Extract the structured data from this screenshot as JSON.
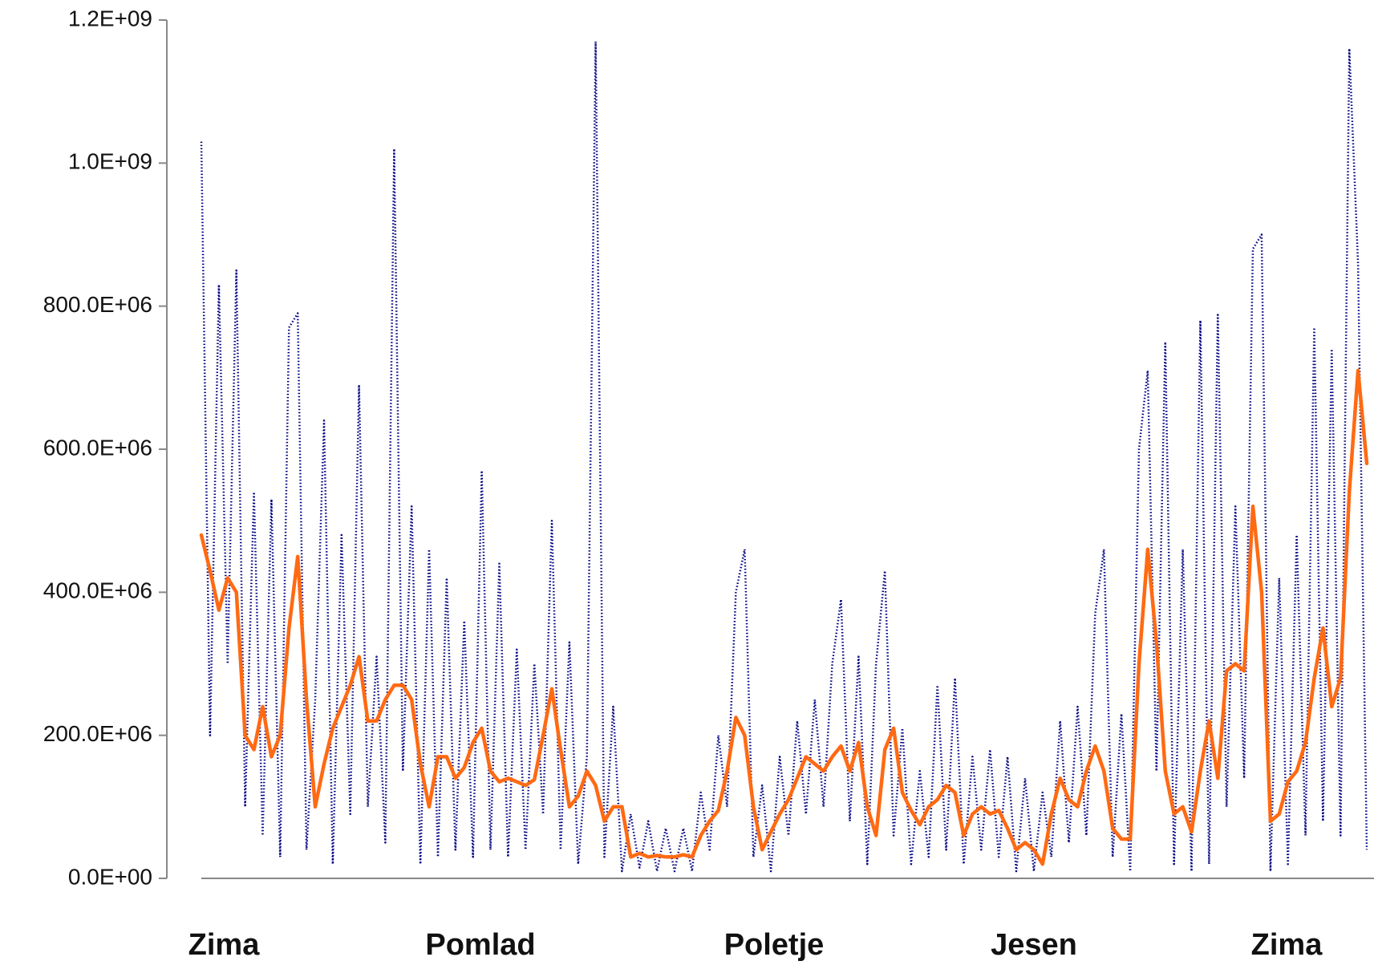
{
  "chart_data": {
    "type": "line",
    "x_axis_labels": [
      "Zima",
      "Pomlad",
      "Poletje",
      "Jesen",
      "Zima"
    ],
    "ylim": [
      0,
      1200000000.0
    ],
    "yticks": [
      {
        "value": 0,
        "label": "0.0E+00"
      },
      {
        "value": 200000000,
        "label": "200.0E+06"
      },
      {
        "value": 400000000,
        "label": "400.0E+06"
      },
      {
        "value": 600000000,
        "label": "600.0E+06"
      },
      {
        "value": 800000000,
        "label": "800.0E+06"
      },
      {
        "value": 1000000000,
        "label": "1.0E+09"
      },
      {
        "value": 1200000000,
        "label": "1.2E+09"
      }
    ],
    "grid": false,
    "series": [
      {
        "color": "#000080",
        "style": "dotted",
        "values": [
          1030000000.0,
          200000000.0,
          830000000.0,
          300000000.0,
          850000000.0,
          100000000.0,
          540000000.0,
          60000000.0,
          530000000.0,
          30000000.0,
          770000000.0,
          790000000.0,
          40000000.0,
          250000000.0,
          640000000.0,
          20000000.0,
          480000000.0,
          90000000.0,
          690000000.0,
          100000000.0,
          310000000.0,
          50000000.0,
          1020000000.0,
          150000000.0,
          520000000.0,
          20000000.0,
          460000000.0,
          30000000.0,
          420000000.0,
          40000000.0,
          360000000.0,
          30000000.0,
          570000000.0,
          40000000.0,
          440000000.0,
          30000000.0,
          320000000.0,
          40000000.0,
          300000000.0,
          90000000.0,
          500000000.0,
          40000000.0,
          330000000.0,
          20000000.0,
          170000000.0,
          1170000000.0,
          30000000.0,
          240000000.0,
          10000000.0,
          90000000.0,
          15000000.0,
          80000000.0,
          10000000.0,
          70000000.0,
          10000000.0,
          70000000.0,
          10000000.0,
          120000000.0,
          40000000.0,
          200000000.0,
          100000000.0,
          400000000.0,
          460000000.0,
          30000000.0,
          130000000.0,
          10000000.0,
          170000000.0,
          60000000.0,
          220000000.0,
          90000000.0,
          250000000.0,
          100000000.0,
          300000000.0,
          390000000.0,
          80000000.0,
          310000000.0,
          20000000.0,
          300000000.0,
          430000000.0,
          60000000.0,
          210000000.0,
          20000000.0,
          150000000.0,
          30000000.0,
          270000000.0,
          40000000.0,
          280000000.0,
          20000000.0,
          170000000.0,
          40000000.0,
          180000000.0,
          30000000.0,
          170000000.0,
          10000000.0,
          140000000.0,
          10000000.0,
          120000000.0,
          30000000.0,
          220000000.0,
          50000000.0,
          240000000.0,
          60000000.0,
          370000000.0,
          460000000.0,
          30000000.0,
          230000000.0,
          10000000.0,
          600000000.0,
          710000000.0,
          150000000.0,
          750000000.0,
          20000000.0,
          460000000.0,
          10000000.0,
          780000000.0,
          20000000.0,
          790000000.0,
          100000000.0,
          520000000.0,
          140000000.0,
          880000000.0,
          900000000.0,
          10000000.0,
          420000000.0,
          20000000.0,
          480000000.0,
          60000000.0,
          770000000.0,
          80000000.0,
          740000000.0,
          60000000.0,
          1160000000.0,
          860000000.0,
          40000000.0
        ]
      },
      {
        "color": "#ff6a13",
        "style": "solid",
        "values": [
          480000000.0,
          430000000.0,
          375000000.0,
          420000000.0,
          400000000.0,
          200000000.0,
          180000000.0,
          240000000.0,
          170000000.0,
          200000000.0,
          350000000.0,
          450000000.0,
          250000000.0,
          100000000.0,
          160000000.0,
          210000000.0,
          240000000.0,
          270000000.0,
          310000000.0,
          220000000.0,
          220000000.0,
          250000000.0,
          270000000.0,
          270000000.0,
          250000000.0,
          160000000.0,
          100000000.0,
          170000000.0,
          170000000.0,
          140000000.0,
          155000000.0,
          190000000.0,
          210000000.0,
          150000000.0,
          135000000.0,
          140000000.0,
          135000000.0,
          130000000.0,
          138000000.0,
          200000000.0,
          265000000.0,
          180000000.0,
          100000000.0,
          115000000.0,
          150000000.0,
          130000000.0,
          80000000.0,
          100000000.0,
          100000000.0,
          30000000.0,
          35000000.0,
          30000000.0,
          32000000.0,
          30000000.0,
          30000000.0,
          33000000.0,
          30000000.0,
          60000000.0,
          80000000.0,
          95000000.0,
          150000000.0,
          225000000.0,
          200000000.0,
          100000000.0,
          40000000.0,
          65000000.0,
          90000000.0,
          110000000.0,
          140000000.0,
          170000000.0,
          160000000.0,
          150000000.0,
          170000000.0,
          185000000.0,
          150000000.0,
          190000000.0,
          100000000.0,
          60000000.0,
          180000000.0,
          210000000.0,
          120000000.0,
          95000000.0,
          75000000.0,
          100000000.0,
          110000000.0,
          130000000.0,
          120000000.0,
          60000000.0,
          90000000.0,
          100000000.0,
          90000000.0,
          95000000.0,
          70000000.0,
          40000000.0,
          50000000.0,
          40000000.0,
          20000000.0,
          90000000.0,
          140000000.0,
          110000000.0,
          100000000.0,
          150000000.0,
          185000000.0,
          150000000.0,
          70000000.0,
          55000000.0,
          55000000.0,
          300000000.0,
          460000000.0,
          330000000.0,
          150000000.0,
          90000000.0,
          100000000.0,
          65000000.0,
          150000000.0,
          220000000.0,
          140000000.0,
          290000000.0,
          300000000.0,
          290000000.0,
          520000000.0,
          400000000.0,
          80000000.0,
          90000000.0,
          135000000.0,
          150000000.0,
          190000000.0,
          280000000.0,
          350000000.0,
          240000000.0,
          280000000.0,
          540000000.0,
          710000000.0,
          580000000.0
        ]
      }
    ]
  }
}
